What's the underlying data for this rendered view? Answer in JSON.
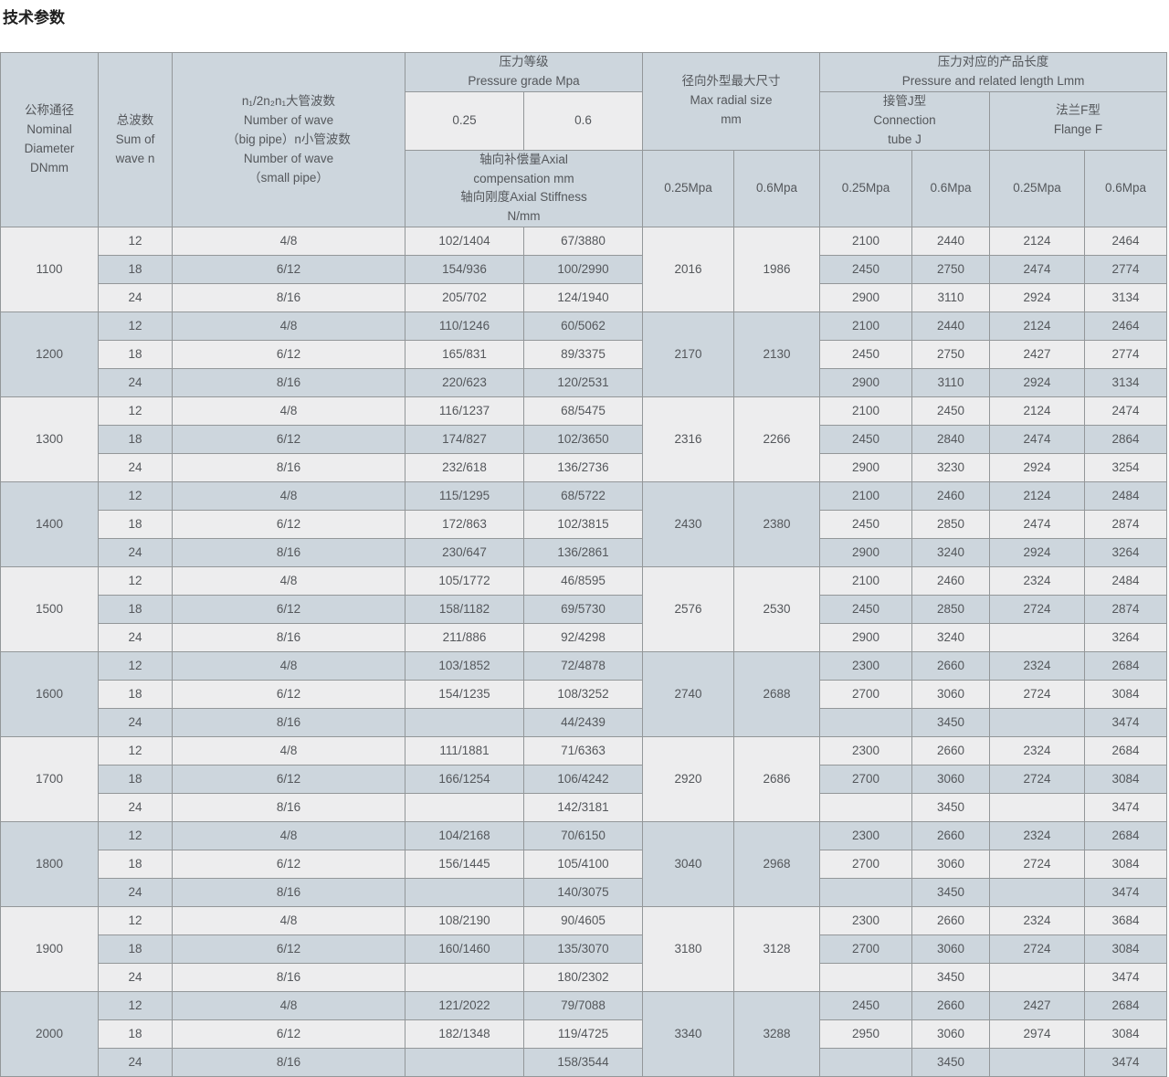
{
  "title": "技术参数",
  "colors": {
    "header_bg": "#cdd6dd",
    "row_light": "#ededee",
    "row_dark": "#cdd6dd",
    "border": "#939799",
    "text": "#54575b"
  },
  "table": {
    "header": {
      "nominal_diameter": "公称通径\nNominal\nDiameter\nDNmm",
      "sum_of_wave": "总波数\nSum of\nwave n",
      "wave_number": "n₁/2n₂n₁大管波数\nNumber of wave\n（big pipe）n小管波数\nNumber of wave\n（small pipe）",
      "pressure_grade": "压力等级\nPressure grade Mpa",
      "pressure_025": "0.25",
      "pressure_06": "0.6",
      "axial": "轴向补偿量Axial\ncompensation mm\n轴向刚度Axial Stiffness\nN/mm",
      "max_radial": "径向外型最大尺寸\nMax radial size\nmm",
      "product_length": "压力对应的产品长度\nPressure and related length Lmm",
      "connection_tube": "接管J型\nConnection\ntube J",
      "flange": "法兰F型\nFlange F",
      "sub_025mpa": "0.25Mpa",
      "sub_06mpa": "0.6Mpa"
    },
    "groups": [
      {
        "dn": "1100",
        "radial": [
          "2016",
          "1986"
        ],
        "rows": [
          {
            "wave": "12",
            "ratio": "4/8",
            "axial": [
              "102/1404",
              "67/3880"
            ],
            "j": [
              "2100",
              "2440"
            ],
            "f": [
              "2124",
              "2464"
            ]
          },
          {
            "wave": "18",
            "ratio": "6/12",
            "axial": [
              "154/936",
              "100/2990"
            ],
            "j": [
              "2450",
              "2750"
            ],
            "f": [
              "2474",
              "2774"
            ]
          },
          {
            "wave": "24",
            "ratio": "8/16",
            "axial": [
              "205/702",
              "124/1940"
            ],
            "j": [
              "2900",
              "3110"
            ],
            "f": [
              "2924",
              "3134"
            ]
          }
        ]
      },
      {
        "dn": "1200",
        "radial": [
          "2170",
          "2130"
        ],
        "rows": [
          {
            "wave": "12",
            "ratio": "4/8",
            "axial": [
              "110/1246",
              "60/5062"
            ],
            "j": [
              "2100",
              "2440"
            ],
            "f": [
              "2124",
              "2464"
            ]
          },
          {
            "wave": "18",
            "ratio": "6/12",
            "axial": [
              "165/831",
              "89/3375"
            ],
            "j": [
              "2450",
              "2750"
            ],
            "f": [
              "2427",
              "2774"
            ]
          },
          {
            "wave": "24",
            "ratio": "8/16",
            "axial": [
              "220/623",
              "120/2531"
            ],
            "j": [
              "2900",
              "3110"
            ],
            "f": [
              "2924",
              "3134"
            ]
          }
        ]
      },
      {
        "dn": "1300",
        "radial": [
          "2316",
          "2266"
        ],
        "rows": [
          {
            "wave": "12",
            "ratio": "4/8",
            "axial": [
              "116/1237",
              "68/5475"
            ],
            "j": [
              "2100",
              "2450"
            ],
            "f": [
              "2124",
              "2474"
            ]
          },
          {
            "wave": "18",
            "ratio": "6/12",
            "axial": [
              "174/827",
              "102/3650"
            ],
            "j": [
              "2450",
              "2840"
            ],
            "f": [
              "2474",
              "2864"
            ]
          },
          {
            "wave": "24",
            "ratio": "8/16",
            "axial": [
              "232/618",
              "136/2736"
            ],
            "j": [
              "2900",
              "3230"
            ],
            "f": [
              "2924",
              "3254"
            ]
          }
        ]
      },
      {
        "dn": "1400",
        "radial": [
          "2430",
          "2380"
        ],
        "rows": [
          {
            "wave": "12",
            "ratio": "4/8",
            "axial": [
              "115/1295",
              "68/5722"
            ],
            "j": [
              "2100",
              "2460"
            ],
            "f": [
              "2124",
              "2484"
            ]
          },
          {
            "wave": "18",
            "ratio": "6/12",
            "axial": [
              "172/863",
              "102/3815"
            ],
            "j": [
              "2450",
              "2850"
            ],
            "f": [
              "2474",
              "2874"
            ]
          },
          {
            "wave": "24",
            "ratio": "8/16",
            "axial": [
              "230/647",
              "136/2861"
            ],
            "j": [
              "2900",
              "3240"
            ],
            "f": [
              "2924",
              "3264"
            ]
          }
        ]
      },
      {
        "dn": "1500",
        "radial": [
          "2576",
          "2530"
        ],
        "rows": [
          {
            "wave": "12",
            "ratio": "4/8",
            "axial": [
              "105/1772",
              "46/8595"
            ],
            "j": [
              "2100",
              "2460"
            ],
            "f": [
              "2324",
              "2484"
            ]
          },
          {
            "wave": "18",
            "ratio": "6/12",
            "axial": [
              "158/1182",
              "69/5730"
            ],
            "j": [
              "2450",
              "2850"
            ],
            "f": [
              "2724",
              "2874"
            ]
          },
          {
            "wave": "24",
            "ratio": "8/16",
            "axial": [
              "211/886",
              "92/4298"
            ],
            "j": [
              "2900",
              "3240"
            ],
            "f": [
              "",
              "3264"
            ]
          }
        ]
      },
      {
        "dn": "1600",
        "radial": [
          "2740",
          "2688"
        ],
        "rows": [
          {
            "wave": "12",
            "ratio": "4/8",
            "axial": [
              "103/1852",
              "72/4878"
            ],
            "j": [
              "2300",
              "2660"
            ],
            "f": [
              "2324",
              "2684"
            ]
          },
          {
            "wave": "18",
            "ratio": "6/12",
            "axial": [
              "154/1235",
              "108/3252"
            ],
            "j": [
              "2700",
              "3060"
            ],
            "f": [
              "2724",
              "3084"
            ]
          },
          {
            "wave": "24",
            "ratio": "8/16",
            "axial": [
              "",
              "44/2439"
            ],
            "j": [
              "",
              "3450"
            ],
            "f": [
              "",
              "3474"
            ]
          }
        ]
      },
      {
        "dn": "1700",
        "radial": [
          "2920",
          "2686"
        ],
        "rows": [
          {
            "wave": "12",
            "ratio": "4/8",
            "axial": [
              "111/1881",
              "71/6363"
            ],
            "j": [
              "2300",
              "2660"
            ],
            "f": [
              "2324",
              "2684"
            ]
          },
          {
            "wave": "18",
            "ratio": "6/12",
            "axial": [
              "166/1254",
              "106/4242"
            ],
            "j": [
              "2700",
              "3060"
            ],
            "f": [
              "2724",
              "3084"
            ]
          },
          {
            "wave": "24",
            "ratio": "8/16",
            "axial": [
              "",
              "142/3181"
            ],
            "j": [
              "",
              "3450"
            ],
            "f": [
              "",
              "3474"
            ]
          }
        ]
      },
      {
        "dn": "1800",
        "radial": [
          "3040",
          "2968"
        ],
        "rows": [
          {
            "wave": "12",
            "ratio": "4/8",
            "axial": [
              "104/2168",
              "70/6150"
            ],
            "j": [
              "2300",
              "2660"
            ],
            "f": [
              "2324",
              "2684"
            ]
          },
          {
            "wave": "18",
            "ratio": "6/12",
            "axial": [
              "156/1445",
              "105/4100"
            ],
            "j": [
              "2700",
              "3060"
            ],
            "f": [
              "2724",
              "3084"
            ]
          },
          {
            "wave": "24",
            "ratio": "8/16",
            "axial": [
              "",
              "140/3075"
            ],
            "j": [
              "",
              "3450"
            ],
            "f": [
              "",
              "3474"
            ]
          }
        ]
      },
      {
        "dn": "1900",
        "radial": [
          "3180",
          "3128"
        ],
        "rows": [
          {
            "wave": "12",
            "ratio": "4/8",
            "axial": [
              "108/2190",
              "90/4605"
            ],
            "j": [
              "2300",
              "2660"
            ],
            "f": [
              "2324",
              "3684"
            ]
          },
          {
            "wave": "18",
            "ratio": "6/12",
            "axial": [
              "160/1460",
              "135/3070"
            ],
            "j": [
              "2700",
              "3060"
            ],
            "f": [
              "2724",
              "3084"
            ]
          },
          {
            "wave": "24",
            "ratio": "8/16",
            "axial": [
              "",
              "180/2302"
            ],
            "j": [
              "",
              "3450"
            ],
            "f": [
              "",
              "3474"
            ]
          }
        ]
      },
      {
        "dn": "2000",
        "radial": [
          "3340",
          "3288"
        ],
        "rows": [
          {
            "wave": "12",
            "ratio": "4/8",
            "axial": [
              "121/2022",
              "79/7088"
            ],
            "j": [
              "2450",
              "2660"
            ],
            "f": [
              "2427",
              "2684"
            ]
          },
          {
            "wave": "18",
            "ratio": "6/12",
            "axial": [
              "182/1348",
              "119/4725"
            ],
            "j": [
              "2950",
              "3060"
            ],
            "f": [
              "2974",
              "3084"
            ]
          },
          {
            "wave": "24",
            "ratio": "8/16",
            "axial": [
              "",
              "158/3544"
            ],
            "j": [
              "",
              "3450"
            ],
            "f": [
              "",
              "3474"
            ]
          }
        ]
      }
    ]
  }
}
